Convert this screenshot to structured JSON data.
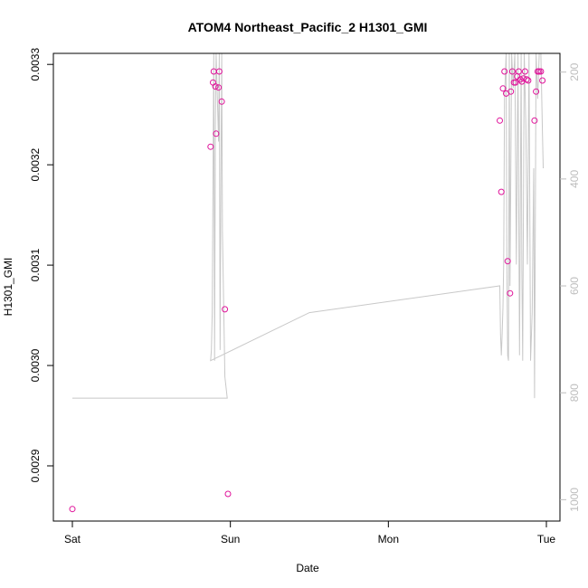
{
  "chart_data": {
    "type": "scatter",
    "title": "ATOM4 Northeast_Pacific_2 H1301_GMI",
    "xlabel": "Date",
    "ylabel": "H1301_GMI",
    "x_ticks": [
      "Sat",
      "Sun",
      "Mon",
      "Tue"
    ],
    "xlim_days": [
      -0.1,
      3.1
    ],
    "ylim": [
      0.002845,
      0.003311
    ],
    "y_ticks": [
      "0.0029",
      "0.0030",
      "0.0031",
      "0.0032",
      "0.0033"
    ],
    "y_tick_values": [
      0.0029,
      0.003,
      0.0031,
      0.0032,
      0.0033
    ],
    "right_axis": {
      "label": "",
      "reversed": true,
      "ylim": [
        1040,
        165
      ],
      "ticks": [
        "200",
        "400",
        "600",
        "800",
        "1000"
      ],
      "tick_values": [
        200,
        400,
        600,
        800,
        1000
      ],
      "color": "#bdbdbd"
    },
    "grid": false,
    "legend": "none",
    "series": [
      {
        "kind": "points",
        "color": "#e0139a",
        "x_days": [
          0.0,
          0.875,
          0.89,
          0.895,
          0.905,
          0.91,
          0.925,
          0.93,
          0.945,
          0.965,
          0.985,
          2.705,
          2.715,
          2.725,
          2.735,
          2.745,
          2.755,
          2.77,
          2.775,
          2.785,
          2.795,
          2.805,
          2.815,
          2.825,
          2.835,
          2.845,
          2.855,
          2.865,
          2.875,
          2.885,
          2.925,
          2.935,
          2.945,
          2.955,
          2.965,
          2.975
        ],
        "values": [
          0.002857,
          0.003218,
          0.003282,
          0.003293,
          0.003278,
          0.003231,
          0.003277,
          0.003293,
          0.003263,
          0.003056,
          0.002872,
          0.003244,
          0.003173,
          0.003276,
          0.003293,
          0.003271,
          0.003104,
          0.003072,
          0.003273,
          0.003293,
          0.003282,
          0.003282,
          0.003288,
          0.003293,
          0.003285,
          0.003283,
          0.003286,
          0.003293,
          0.003285,
          0.003284,
          0.003244,
          0.003273,
          0.003293,
          0.003293,
          0.003293,
          0.003284
        ]
      },
      {
        "kind": "line",
        "axis": "right",
        "color": "#c8c8c8",
        "x_days": [
          0.0,
          0.5,
          0.98,
          0.965,
          0.95,
          0.945,
          0.94,
          0.935,
          0.93,
          0.925,
          0.91,
          0.905,
          0.9,
          0.895,
          0.885,
          0.88,
          0.875,
          1.5,
          2.705,
          2.71,
          2.715,
          2.72,
          2.725,
          2.73,
          2.735,
          2.745,
          2.75,
          2.755,
          2.76,
          2.765,
          2.77,
          2.78,
          2.79,
          2.8,
          2.81,
          2.82,
          2.83,
          2.84,
          2.845,
          2.85,
          2.86,
          2.87,
          2.88,
          2.89,
          2.9,
          2.91,
          2.92,
          2.925,
          2.935,
          2.945,
          2.955,
          2.965,
          2.975,
          2.98
        ],
        "values": [
          810,
          810,
          810,
          770,
          500,
          165,
          400,
          720,
          165,
          330,
          165,
          300,
          740,
          165,
          650,
          720,
          740,
          650,
          600,
          690,
          730,
          690,
          640,
          560,
          250,
          165,
          560,
          730,
          740,
          165,
          600,
          165,
          230,
          165,
          560,
          165,
          730,
          165,
          570,
          740,
          165,
          300,
          560,
          165,
          740,
          650,
          380,
          810,
          165,
          250,
          165,
          165,
          310,
          380
        ]
      }
    ]
  }
}
